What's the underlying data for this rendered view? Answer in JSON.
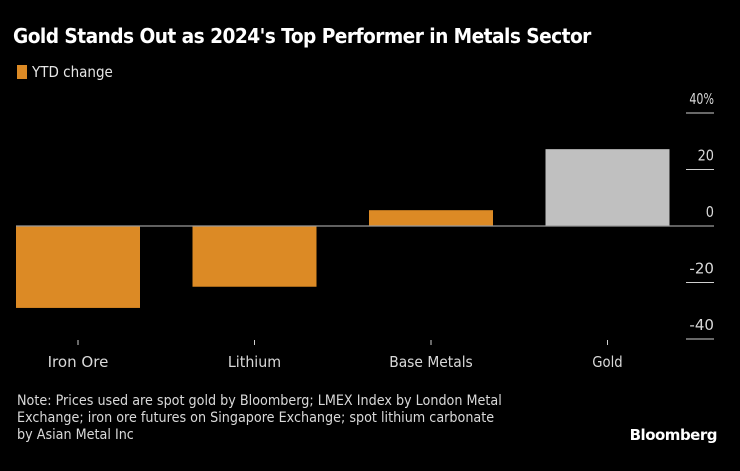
{
  "title": "Gold Stands Out as 2024's Top Performer in Metals Sector",
  "legend": {
    "label": "YTD change",
    "color": "#dc8a25"
  },
  "note_lines": [
    "Note: Prices used are spot gold by Bloomberg; LMEX Index by London Metal",
    "Exchange; iron ore futures on Singapore Exchange; spot lithium carbonate",
    "by Asian Metal Inc"
  ],
  "brand": "Bloomberg",
  "chart_data": {
    "type": "bar",
    "title": "Gold Stands Out as 2024's Top Performer in Metals Sector",
    "xlabel": "",
    "ylabel": "",
    "categories": [
      "Iron Ore",
      "Lithium",
      "Base Metals",
      "Gold"
    ],
    "series": [
      {
        "name": "YTD change",
        "values": [
          -29,
          -21.5,
          5.6,
          27.2
        ]
      }
    ],
    "bar_colors": [
      "#dc8a25",
      "#dc8a25",
      "#dc8a25",
      "#c0c0c0"
    ],
    "ylim": [
      -40,
      40
    ],
    "yticks": [
      40,
      20,
      0,
      -20,
      -40
    ],
    "ytick_labels": [
      "40%",
      "20",
      "0",
      "-20",
      "-40"
    ],
    "y_axis_position": "right",
    "grid": false,
    "legend_position": "top-left",
    "colors": {
      "zero_line": "#9a9a9a",
      "tick": "#cfcfcf",
      "label": "#d9d9d9"
    }
  }
}
